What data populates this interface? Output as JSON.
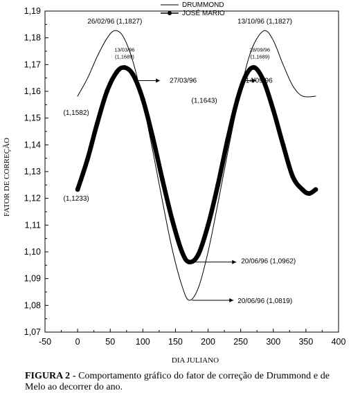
{
  "chart_data": {
    "type": "line",
    "xlabel": "DIA JULIANO",
    "ylabel": "FATOR DE CORREÇÃO",
    "xlim": [
      -50,
      400
    ],
    "ylim": [
      1.07,
      1.19
    ],
    "xticks": [
      -50,
      0,
      50,
      100,
      150,
      200,
      250,
      300,
      350,
      400
    ],
    "xtick_labels": [
      "-50",
      "0",
      "50",
      "100",
      "150",
      "200",
      "250",
      "300",
      "350",
      "400"
    ],
    "yticks": [
      1.07,
      1.08,
      1.09,
      1.1,
      1.11,
      1.12,
      1.13,
      1.14,
      1.15,
      1.16,
      1.17,
      1.18,
      1.19
    ],
    "ytick_labels": [
      "1,07",
      "1,08",
      "1,09",
      "1,10",
      "1,11",
      "1,12",
      "1,13",
      "1,14",
      "1,15",
      "1,16",
      "1,17",
      "1,18",
      "1,19"
    ],
    "grid": false,
    "legend_position": "top-center",
    "series": [
      {
        "name": "DRUMMOND",
        "style": "thin-line",
        "color": "#000000",
        "x": [
          0,
          15,
          30,
          45,
          57,
          70,
          85,
          100,
          115,
          130,
          145,
          160,
          171,
          185,
          200,
          215,
          230,
          245,
          260,
          272,
          287,
          300,
          315,
          330,
          345,
          365
        ],
        "y": [
          1.1582,
          1.1648,
          1.173,
          1.1798,
          1.1827,
          1.1804,
          1.171,
          1.156,
          1.138,
          1.119,
          1.101,
          1.0873,
          1.0819,
          1.0865,
          1.1,
          1.118,
          1.137,
          1.155,
          1.1705,
          1.1785,
          1.1827,
          1.179,
          1.17,
          1.162,
          1.1582,
          1.1582
        ]
      },
      {
        "name": "JOSÉ MARIO",
        "style": "thick-dotted-line",
        "color": "#000000",
        "x": [
          0,
          15,
          30,
          45,
          60,
          72,
          85,
          100,
          115,
          130,
          145,
          160,
          171,
          185,
          200,
          215,
          230,
          245,
          258,
          271,
          285,
          300,
          315,
          330,
          345,
          355,
          365
        ],
        "y": [
          1.1233,
          1.1345,
          1.148,
          1.16,
          1.1672,
          1.1689,
          1.1662,
          1.157,
          1.143,
          1.127,
          1.112,
          1.1,
          1.0962,
          1.099,
          1.11,
          1.125,
          1.142,
          1.157,
          1.166,
          1.1689,
          1.164,
          1.153,
          1.14,
          1.128,
          1.1232,
          1.1218,
          1.1233
        ]
      }
    ],
    "annotations": [
      {
        "text": "26/02/96 (1,1827)",
        "x": 57,
        "y": 1.1827
      },
      {
        "text": "13/03/96",
        "x": 72,
        "y": 1.1689
      },
      {
        "text": "(1,1689)",
        "x": 72,
        "y": 1.1689
      },
      {
        "text": "27/03/96",
        "x": 86,
        "y": 1.164,
        "arrow": true
      },
      {
        "text": "(1,1582)",
        "x": 0,
        "y": 1.1582
      },
      {
        "text": "(1,1643)",
        "x": 190,
        "y": 1.1643
      },
      {
        "text": "(1,1233)",
        "x": 0,
        "y": 1.1233
      },
      {
        "text": "13/10/96 (1,1827)",
        "x": 287,
        "y": 1.1827
      },
      {
        "text": "28/09/96",
        "x": 271,
        "y": 1.1689
      },
      {
        "text": "(1,1689)",
        "x": 271,
        "y": 1.1689
      },
      {
        "text": "14/09/96",
        "x": 257,
        "y": 1.164,
        "arrow": true
      },
      {
        "text": "20/06/96 (1,0962)",
        "x": 171,
        "y": 1.0962,
        "arrow": true
      },
      {
        "text": "20/06/96 (1,0819)",
        "x": 171,
        "y": 1.0819,
        "arrow": true
      }
    ]
  },
  "caption": {
    "label": "FIGURA 2 -",
    "text": " Comportamento gráfico do fator de correção de Drummond e de Melo ao decorrer do ano."
  }
}
